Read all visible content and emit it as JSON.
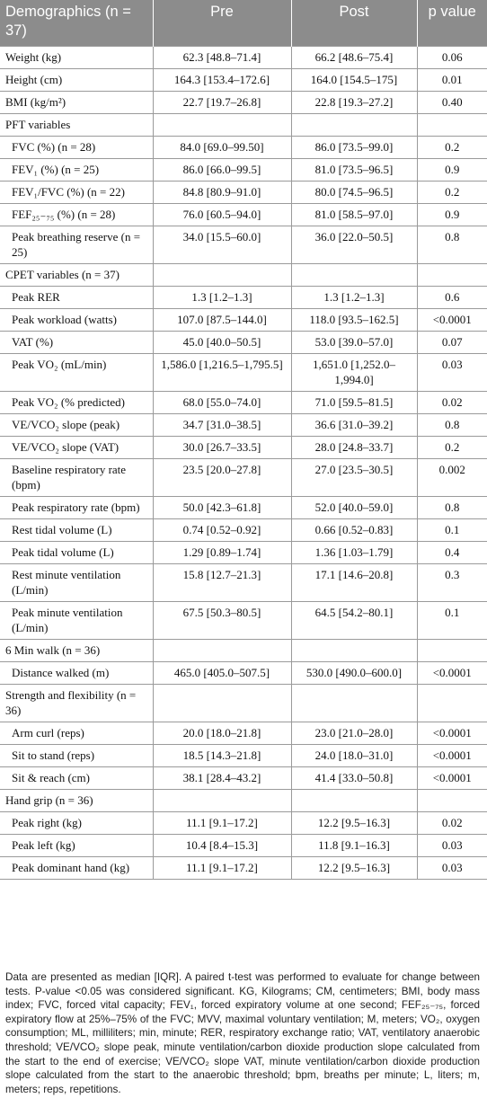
{
  "header": {
    "col1": "Demographics (n = 37)",
    "col2": "Pre",
    "col3": "Post",
    "col4": "p value"
  },
  "rows": [
    {
      "k": "row",
      "label": "Weight (kg)",
      "pre": "62.3 [48.8–71.4]",
      "post": "66.2 [48.6–75.4]",
      "p": "0.06"
    },
    {
      "k": "row",
      "label": "Height (cm)",
      "pre": "164.3 [153.4–172.6]",
      "post": "164.0 [154.5–175]",
      "p": "0.01"
    },
    {
      "k": "row",
      "label": "BMI (kg/m²)",
      "pre": "22.7 [19.7–26.8]",
      "post": "22.8 [19.3–27.2]",
      "p": "0.40"
    },
    {
      "k": "sec",
      "label": "PFT variables"
    },
    {
      "k": "sub",
      "label": "FVC (%) (n = 28)",
      "pre": "84.0 [69.0–99.50]",
      "post": "86.0 [73.5–99.0]",
      "p": "0.2"
    },
    {
      "k": "sub",
      "label": "FEV₁ (%) (n = 25)",
      "pre": "86.0 [66.0–99.5]",
      "post": "81.0 [73.5–96.5]",
      "p": "0.9"
    },
    {
      "k": "sub",
      "label": "FEV₁/FVC (%) (n = 22)",
      "pre": "84.8 [80.9–91.0]",
      "post": "80.0 [74.5–96.5]",
      "p": "0.2"
    },
    {
      "k": "sub",
      "label": "FEF₂₅₋₇₅ (%) (n = 28)",
      "pre": "76.0 [60.5–94.0]",
      "post": "81.0 [58.5–97.0]",
      "p": "0.9"
    },
    {
      "k": "sub",
      "label": "Peak breathing reserve (n = 25)",
      "pre": "34.0 [15.5–60.0]",
      "post": "36.0 [22.0–50.5]",
      "p": "0.8"
    },
    {
      "k": "sec",
      "label": "CPET variables (n = 37)"
    },
    {
      "k": "sub",
      "label": "Peak RER",
      "pre": "1.3 [1.2–1.3]",
      "post": "1.3 [1.2–1.3]",
      "p": "0.6"
    },
    {
      "k": "sub",
      "label": "Peak workload (watts)",
      "pre": "107.0 [87.5–144.0]",
      "post": "118.0 [93.5–162.5]",
      "p": "<0.0001"
    },
    {
      "k": "sub",
      "label": "VAT (%)",
      "pre": "45.0 [40.0–50.5]",
      "post": "53.0 [39.0–57.0]",
      "p": "0.07"
    },
    {
      "k": "sub",
      "label": "Peak VO₂ (mL/min)",
      "pre": "1,586.0 [1,216.5–1,795.5]",
      "post": "1,651.0 [1,252.0–1,994.0]",
      "p": "0.03"
    },
    {
      "k": "sub",
      "label": "Peak VO₂ (% predicted)",
      "pre": "68.0 [55.0–74.0]",
      "post": "71.0 [59.5–81.5]",
      "p": "0.02"
    },
    {
      "k": "sub",
      "label": "VE/VCO₂ slope (peak)",
      "pre": "34.7 [31.0–38.5]",
      "post": "36.6 [31.0–39.2]",
      "p": "0.8"
    },
    {
      "k": "sub",
      "label": "VE/VCO₂ slope (VAT)",
      "pre": "30.0 [26.7–33.5]",
      "post": "28.0 [24.8–33.7]",
      "p": "0.2"
    },
    {
      "k": "sub",
      "label": "Baseline respiratory rate (bpm)",
      "pre": "23.5 [20.0–27.8]",
      "post": "27.0 [23.5–30.5]",
      "p": "0.002"
    },
    {
      "k": "sub",
      "label": "Peak respiratory rate (bpm)",
      "pre": "50.0 [42.3–61.8]",
      "post": "52.0 [40.0–59.0]",
      "p": "0.8"
    },
    {
      "k": "sub",
      "label": "Rest tidal volume (L)",
      "pre": "0.74 [0.52–0.92]",
      "post": "0.66 [0.52–0.83]",
      "p": "0.1"
    },
    {
      "k": "sub",
      "label": "Peak tidal volume (L)",
      "pre": "1.29 [0.89–1.74]",
      "post": "1.36 [1.03–1.79]",
      "p": "0.4"
    },
    {
      "k": "sub",
      "label": "Rest minute ventilation (L/min)",
      "pre": "15.8 [12.7–21.3]",
      "post": "17.1 [14.6–20.8]",
      "p": "0.3"
    },
    {
      "k": "sub",
      "label": "Peak minute ventilation (L/min)",
      "pre": "67.5 [50.3–80.5]",
      "post": "64.5 [54.2–80.1]",
      "p": "0.1"
    },
    {
      "k": "sec",
      "label": "6 Min walk (n = 36)"
    },
    {
      "k": "sub",
      "label": "Distance walked (m)",
      "pre": "465.0 [405.0–507.5]",
      "post": "530.0 [490.0–600.0]",
      "p": "<0.0001"
    },
    {
      "k": "sec",
      "label": "Strength and flexibility (n = 36)"
    },
    {
      "k": "sub",
      "label": "Arm curl (reps)",
      "pre": "20.0 [18.0–21.8]",
      "post": "23.0 [21.0–28.0]",
      "p": "<0.0001"
    },
    {
      "k": "sub",
      "label": "Sit to stand (reps)",
      "pre": "18.5 [14.3–21.8]",
      "post": "24.0 [18.0–31.0]",
      "p": "<0.0001"
    },
    {
      "k": "sub",
      "label": "Sit & reach (cm)",
      "pre": "38.1 [28.4–43.2]",
      "post": "41.4 [33.0–50.8]",
      "p": "<0.0001"
    },
    {
      "k": "sec",
      "label": "Hand grip (n = 36)"
    },
    {
      "k": "sub",
      "label": "Peak right (kg)",
      "pre": "11.1 [9.1–17.2]",
      "post": "12.2 [9.5–16.3]",
      "p": "0.02"
    },
    {
      "k": "sub",
      "label": "Peak left (kg)",
      "pre": "10.4 [8.4–15.3]",
      "post": "11.8 [9.1–16.3]",
      "p": "0.03"
    },
    {
      "k": "sub",
      "label": "Peak dominant hand (kg)",
      "pre": "11.1 [9.1–17.2]",
      "post": "12.2 [9.5–16.3]",
      "p": "0.03"
    }
  ],
  "footnote": "Data are presented as median [IQR]. A paired t-test was performed to evaluate for change between tests. P-value <0.05 was considered significant. KG, Kilograms; CM, centimeters; BMI, body mass index; FVC, forced vital capacity; FEV₁, forced expiratory volume at one second; FEF₂₅₋₇₅, forced expiratory flow at 25%–75% of the FVC; MVV, maximal voluntary ventilation; M, meters; VO₂, oxygen consumption; ML, milliliters; min, minute; RER, respiratory exchange ratio; VAT, ventilatory anaerobic threshold; VE/VCO₂ slope peak, minute ventilation/carbon dioxide production slope calculated from the start to the end of exercise; VE/VCO₂ slope VAT, minute ventilation/carbon dioxide production slope calculated from the start to the anaerobic threshold; bpm, breaths per minute; L, liters; m, meters; reps, repetitions."
}
